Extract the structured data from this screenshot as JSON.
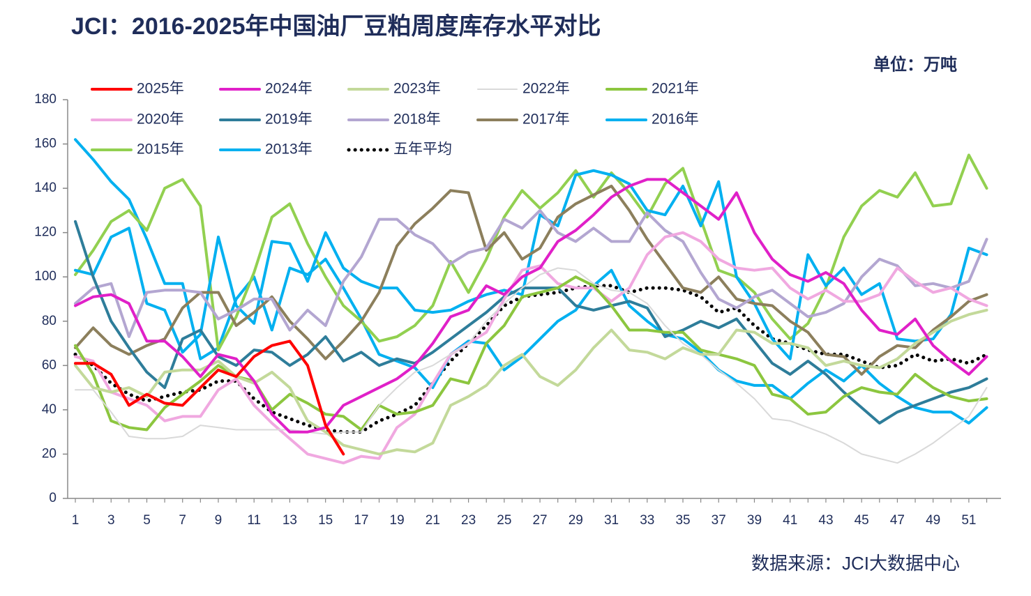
{
  "chart_data": {
    "type": "line",
    "title": "JCI：2016-2025年中国油厂豆粕周度库存水平对比",
    "unit": "单位：万吨",
    "source": "数据来源：JCI大数据中心",
    "x": [
      1,
      2,
      3,
      4,
      5,
      6,
      7,
      8,
      9,
      10,
      11,
      12,
      13,
      14,
      15,
      16,
      17,
      18,
      19,
      20,
      21,
      22,
      23,
      24,
      25,
      26,
      27,
      28,
      29,
      30,
      31,
      32,
      33,
      34,
      35,
      36,
      37,
      38,
      39,
      40,
      41,
      42,
      43,
      44,
      45,
      46,
      47,
      48,
      49,
      50,
      51,
      52
    ],
    "xlim": [
      0.57,
      52.8
    ],
    "xticks": [
      1,
      3,
      5,
      7,
      9,
      11,
      13,
      15,
      17,
      19,
      21,
      23,
      25,
      27,
      29,
      31,
      33,
      35,
      37,
      39,
      41,
      43,
      45,
      47,
      49,
      51
    ],
    "ylim": [
      0,
      180
    ],
    "yticks": [
      0,
      20,
      40,
      60,
      80,
      100,
      120,
      140,
      160,
      180
    ],
    "series": [
      {
        "name": "2025年",
        "color": "#ff0000",
        "line_width": 4,
        "values": [
          61,
          61,
          56,
          42,
          47,
          43,
          42,
          50,
          58,
          55,
          64,
          69,
          71,
          60,
          33,
          20,
          null,
          null,
          null,
          null,
          null,
          null,
          null,
          null,
          null,
          null,
          null,
          null,
          null,
          null,
          null,
          null,
          null,
          null,
          null,
          null,
          null,
          null,
          null,
          null,
          null,
          null,
          null,
          null,
          null,
          null,
          null,
          null,
          null,
          null,
          null,
          null
        ]
      },
      {
        "name": "2024年",
        "color": "#e020c8",
        "line_width": 4,
        "values": [
          87,
          91,
          92,
          88,
          71,
          71,
          64,
          55,
          65,
          63,
          53,
          38,
          30,
          30,
          32,
          42,
          46,
          50,
          54,
          60,
          70,
          82,
          85,
          96,
          92,
          100,
          104,
          116,
          121,
          128,
          136,
          141,
          144,
          144,
          138,
          132,
          126,
          138,
          120,
          108,
          101,
          98,
          102,
          97,
          85,
          76,
          74,
          81,
          69,
          62,
          56,
          64
        ]
      },
      {
        "name": "2023年",
        "color": "#c3d99a",
        "line_width": 4,
        "values": [
          60,
          50,
          48,
          50,
          46,
          57,
          58,
          58,
          62,
          55,
          52,
          57,
          50,
          35,
          30,
          24,
          22,
          20,
          22,
          21,
          25,
          42,
          46,
          51,
          60,
          65,
          55,
          51,
          58,
          68,
          76,
          67,
          66,
          63,
          68,
          65,
          65,
          76,
          75,
          70,
          70,
          68,
          60,
          62,
          60,
          59,
          63,
          70,
          75,
          80,
          83,
          85
        ]
      },
      {
        "name": "2022年",
        "color": "#d9d9d9",
        "line_width": 2,
        "values": [
          49,
          49,
          39,
          28,
          27,
          27,
          28,
          33,
          32,
          31,
          31,
          31,
          31,
          30,
          29,
          30,
          30,
          42,
          50,
          57,
          60,
          65,
          70,
          80,
          88,
          95,
          101,
          104,
          103,
          97,
          94,
          93,
          88,
          78,
          70,
          65,
          58,
          52,
          45,
          36,
          35,
          32,
          29,
          25,
          20,
          18,
          16,
          20,
          25,
          31,
          37,
          50
        ]
      },
      {
        "name": "2021年",
        "color": "#8cc63f",
        "line_width": 4,
        "values": [
          69,
          56,
          35,
          32,
          31,
          41,
          47,
          53,
          60,
          55,
          53,
          40,
          47,
          43,
          38,
          37,
          31,
          42,
          38,
          39,
          42,
          54,
          52,
          70,
          78,
          91,
          93,
          95,
          100,
          96,
          87,
          76,
          76,
          75,
          75,
          67,
          65,
          63,
          60,
          47,
          45,
          38,
          39,
          46,
          50,
          48,
          47,
          56,
          50,
          46,
          44,
          45
        ]
      },
      {
        "name": "2020年",
        "color": "#f0a8e0",
        "line_width": 4,
        "values": [
          64,
          62,
          48,
          45,
          42,
          35,
          37,
          37,
          49,
          54,
          42,
          34,
          27,
          20,
          18,
          16,
          19,
          18,
          32,
          38,
          52,
          65,
          70,
          75,
          90,
          103,
          105,
          97,
          95,
          95,
          89,
          95,
          110,
          118,
          120,
          116,
          108,
          104,
          103,
          104,
          95,
          90,
          94,
          89,
          89,
          92,
          104,
          98,
          93,
          95,
          90,
          87
        ]
      },
      {
        "name": "2019年",
        "color": "#2e7d9a",
        "line_width": 4,
        "values": [
          125,
          100,
          80,
          68,
          57,
          50,
          72,
          76,
          64,
          60,
          67,
          66,
          60,
          65,
          73,
          62,
          66,
          60,
          63,
          61,
          66,
          72,
          78,
          84,
          91,
          95,
          95,
          95,
          87,
          85,
          87,
          89,
          86,
          73,
          76,
          80,
          77,
          81,
          71,
          61,
          56,
          62,
          56,
          48,
          41,
          34,
          39,
          42,
          45,
          48,
          50,
          54
        ]
      },
      {
        "name": "2018年",
        "color": "#b3a6d1",
        "line_width": 4,
        "values": [
          88,
          95,
          97,
          73,
          93,
          94,
          94,
          93,
          81,
          85,
          90,
          90,
          76,
          85,
          78,
          98,
          109,
          126,
          126,
          119,
          115,
          106,
          111,
          113,
          126,
          122,
          130,
          120,
          116,
          122,
          116,
          116,
          129,
          121,
          116,
          102,
          90,
          86,
          91,
          94,
          88,
          82,
          84,
          88,
          100,
          108,
          105,
          96,
          97,
          95,
          98,
          117
        ]
      },
      {
        "name": "2017年",
        "color": "#8c7f5c",
        "line_width": 4,
        "values": [
          68,
          77,
          69,
          65,
          69,
          72,
          86,
          93,
          93,
          78,
          84,
          91,
          80,
          72,
          63,
          71,
          80,
          93,
          114,
          124,
          131,
          139,
          138,
          112,
          120,
          108,
          113,
          127,
          133,
          137,
          141,
          130,
          117,
          106,
          95,
          93,
          100,
          90,
          88,
          87,
          80,
          75,
          65,
          64,
          56,
          64,
          69,
          68,
          76,
          82,
          89,
          92
        ]
      },
      {
        "name": "2016年",
        "color": "#00b0f0",
        "line_width": 4,
        "values": [
          103,
          101,
          118,
          122,
          88,
          85,
          66,
          74,
          118,
          87,
          79,
          116,
          115,
          98,
          120,
          104,
          98,
          95,
          95,
          85,
          84,
          85,
          89,
          92,
          94,
          92,
          128,
          123,
          146,
          148,
          146,
          142,
          130,
          128,
          141,
          123,
          143,
          100,
          88,
          72,
          63,
          110,
          96,
          104,
          92,
          97,
          72,
          71,
          72,
          83,
          113,
          110
        ]
      },
      {
        "name": "2015年",
        "color": "#92d050",
        "line_width": 4,
        "values": [
          101,
          112,
          125,
          130,
          121,
          140,
          144,
          132,
          67,
          82,
          102,
          127,
          133,
          115,
          100,
          87,
          80,
          71,
          73,
          78,
          87,
          107,
          93,
          108,
          127,
          139,
          131,
          138,
          148,
          136,
          147,
          138,
          127,
          142,
          149,
          126,
          103,
          100,
          93,
          81,
          72,
          79,
          95,
          118,
          132,
          139,
          136,
          147,
          132,
          133,
          155,
          140
        ]
      },
      {
        "name": "2013年",
        "color": "#00b0f0",
        "line_width": 4,
        "values": [
          162,
          153,
          143,
          135,
          117,
          97,
          97,
          63,
          68,
          90,
          100,
          76,
          104,
          101,
          108,
          95,
          81,
          65,
          62,
          59,
          50,
          65,
          71,
          70,
          58,
          64,
          72,
          80,
          85,
          96,
          103,
          87,
          80,
          74,
          72,
          66,
          58,
          53,
          51,
          51,
          45,
          52,
          58,
          53,
          60,
          52,
          46,
          41,
          39,
          39,
          34,
          41
        ]
      },
      {
        "name": "五年平均",
        "color": "#000000",
        "line_width": 5,
        "style": "dotted",
        "values": [
          65,
          60,
          52,
          47,
          44,
          46,
          48,
          49,
          53,
          53,
          45,
          39,
          36,
          33,
          31,
          30,
          30,
          35,
          38,
          42,
          52,
          62,
          70,
          78,
          87,
          91,
          92,
          93,
          95,
          96,
          96,
          93,
          95,
          95,
          94,
          91,
          84,
          86,
          78,
          72,
          70,
          67,
          65,
          65,
          62,
          59,
          60,
          65,
          62,
          63,
          61,
          65
        ]
      }
    ]
  }
}
